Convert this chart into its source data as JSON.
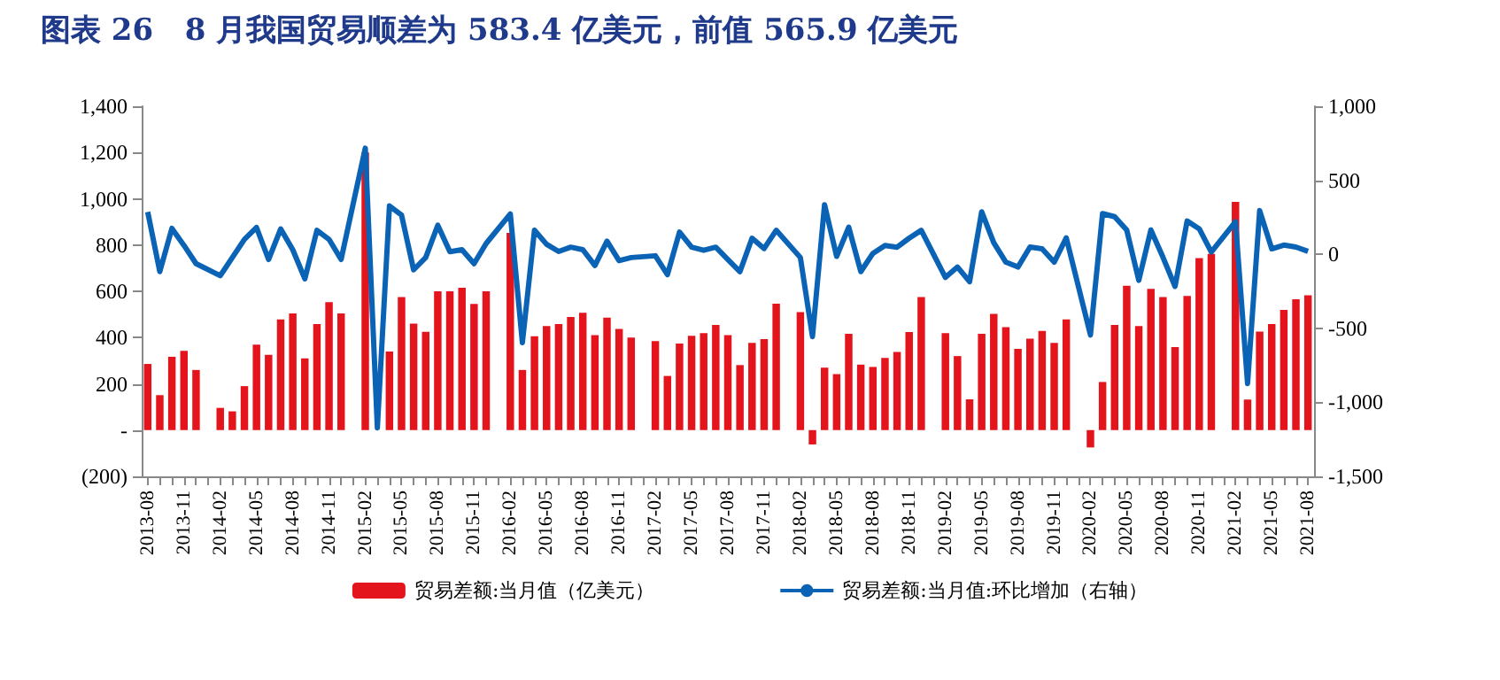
{
  "chart_data": {
    "type": "bar",
    "title": "图表 26   8 月我国贸易顺差为 583.4 亿美元，前值 565.9 亿美元",
    "categories": [
      "2013-08",
      null,
      null,
      "2013-11",
      null,
      null,
      "2014-02",
      null,
      null,
      "2014-05",
      null,
      null,
      "2014-08",
      null,
      null,
      "2014-11",
      null,
      null,
      "2015-02",
      null,
      null,
      "2015-05",
      null,
      null,
      "2015-08",
      null,
      null,
      "2015-11",
      null,
      null,
      "2016-02",
      null,
      null,
      "2016-05",
      null,
      null,
      "2016-08",
      null,
      null,
      "2016-11",
      null,
      null,
      "2017-02",
      null,
      null,
      "2017-05",
      null,
      null,
      "2017-08",
      null,
      null,
      "2017-11",
      null,
      null,
      "2018-02",
      null,
      null,
      "2018-05",
      null,
      null,
      "2018-08",
      null,
      null,
      "2018-11",
      null,
      null,
      "2019-02",
      null,
      null,
      "2019-05",
      null,
      null,
      "2019-08",
      null,
      null,
      "2019-11",
      null,
      null,
      "2020-02",
      null,
      null,
      "2020-05",
      null,
      null,
      "2020-08",
      null,
      null,
      "2020-11",
      null,
      null,
      "2021-02",
      null,
      null,
      "2021-05",
      null,
      null,
      "2021-08"
    ],
    "series": [
      {
        "name": "贸易差额:当月值（亿美元）",
        "color": "#e3141c",
        "values": [
          286,
          151,
          317,
          343,
          260,
          null,
          96,
          81,
          190,
          369,
          325,
          478,
          504,
          310,
          458,
          553,
          504,
          null,
          1200,
          null,
          340,
          575,
          460,
          425,
          600,
          600,
          615,
          545,
          600,
          null,
          853,
          260,
          406,
          450,
          458,
          489,
          507,
          411,
          486,
          437,
          400,
          null,
          385,
          234,
          374,
          408,
          419,
          455,
          411,
          281,
          377,
          393,
          546,
          null,
          510,
          -62,
          270,
          242,
          416,
          283,
          273,
          312,
          338,
          424,
          575,
          null,
          419,
          320,
          133,
          416,
          502,
          445,
          351,
          395,
          429,
          377,
          478,
          null,
          -75,
          208,
          455,
          624,
          450,
          611,
          575,
          359,
          580,
          744,
          762,
          null,
          987,
          132,
          426,
          458,
          520,
          566,
          583
        ]
      },
      {
        "name": "贸易差额:当月值:环比增加（右轴）",
        "type": "line",
        "axis": "y2",
        "color": "#0b63b6",
        "values": [
          286,
          -117,
          175,
          60,
          -63,
          null,
          -145,
          -22,
          101,
          181,
          -35,
          171,
          31,
          -166,
          162,
          101,
          -35,
          null,
          717,
          -1172,
          327,
          265,
          -105,
          -22,
          196,
          18,
          31,
          -63,
          73,
          null,
          273,
          -597,
          163,
          68,
          19,
          48,
          31,
          -76,
          89,
          -43,
          -22,
          null,
          -10,
          -137,
          150,
          48,
          27,
          48,
          -35,
          -117,
          109,
          39,
          162,
          null,
          -22,
          -556,
          335,
          -14,
          183,
          -117,
          6,
          60,
          48,
          109,
          162,
          null,
          -156,
          -86,
          -185,
          287,
          78,
          -53,
          -86,
          49,
          37,
          -53,
          111,
          null,
          -545,
          275,
          254,
          164,
          -176,
          164,
          -20,
          -217,
          225,
          172,
          16,
          null,
          220,
          -873,
          295,
          37,
          62,
          49,
          20
        ]
      }
    ],
    "ylim": [
      -200,
      1400
    ],
    "yticks": [
      {
        "value": -200,
        "label": "(200)"
      },
      {
        "value": 0,
        "label": "-"
      },
      200,
      400,
      600,
      800,
      {
        "value": 1000,
        "label": "1,000"
      },
      {
        "value": 1200,
        "label": "1,200"
      },
      {
        "value": 1400,
        "label": "1,400"
      }
    ],
    "y2lim": [
      -1500,
      1000
    ],
    "y2ticks": [
      {
        "value": -1500,
        "label": "-1,500"
      },
      {
        "value": -1000,
        "label": "-1,000"
      },
      -500,
      0,
      500,
      {
        "value": 1000,
        "label": "1,000"
      }
    ],
    "grid": false,
    "legend": "bottom"
  }
}
